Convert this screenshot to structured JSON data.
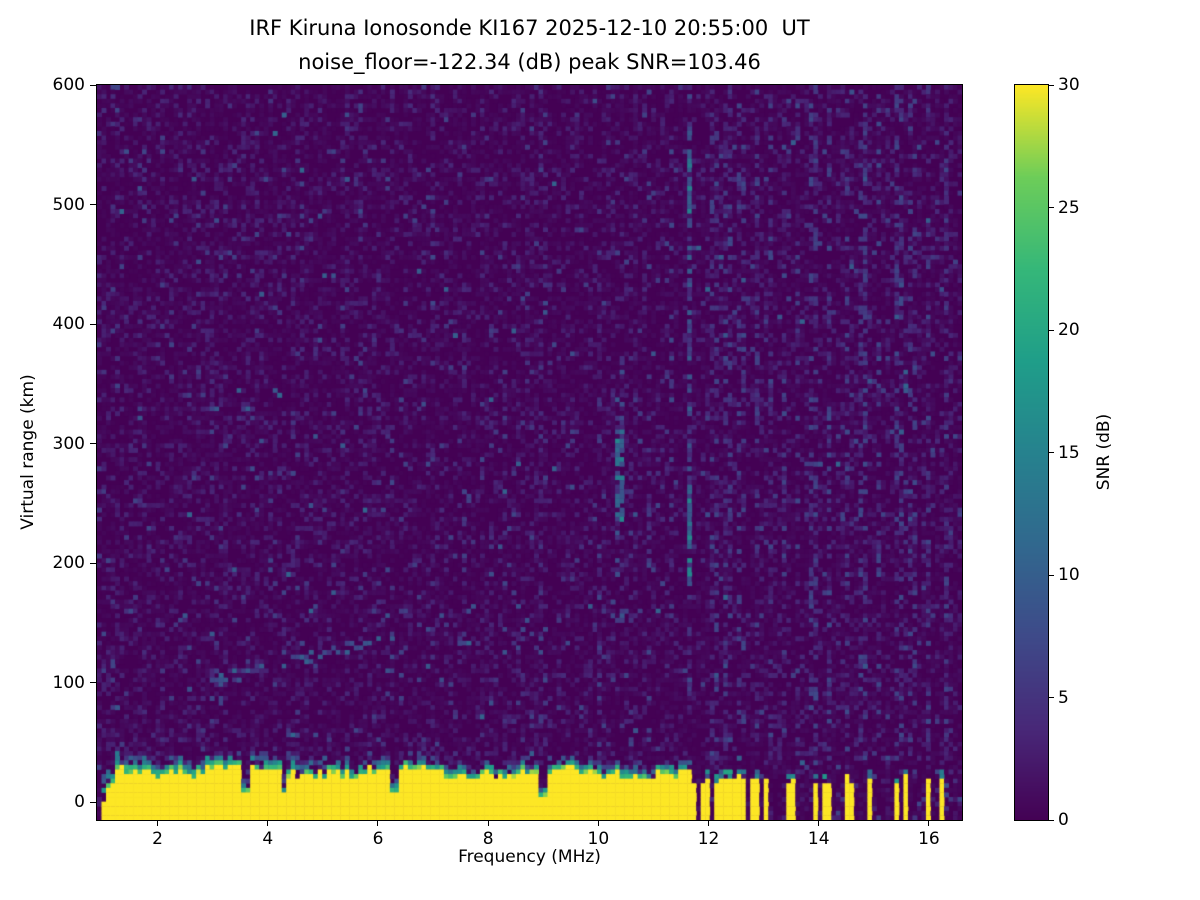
{
  "chart_data": {
    "type": "heatmap",
    "title": "IRF Kiruna Ionosonde KI167 2025-12-10 20:55:00  UT",
    "subtitle": "noise_floor=-122.34 (dB) peak SNR=103.46",
    "xlabel": "Frequency (MHz)",
    "ylabel": "Virtual range (km)",
    "colorbar_label": "SNR (dB)",
    "station": "IRF Kiruna Ionosonde KI167",
    "timestamp_ut": "2025-12-10 20:55:00 UT",
    "noise_floor_db": -122.34,
    "peak_snr_db": 103.46,
    "xlim": [
      0.9,
      16.6
    ],
    "ylim": [
      -15,
      600
    ],
    "clim": [
      0,
      30
    ],
    "xticks": [
      2,
      4,
      6,
      8,
      10,
      12,
      14,
      16
    ],
    "yticks": [
      0,
      100,
      200,
      300,
      400,
      500,
      600
    ],
    "cticks": [
      0,
      5,
      10,
      15,
      20,
      25,
      30
    ],
    "colormap": "viridis",
    "colormap_stops": [
      [
        0.0,
        [
          68,
          1,
          84
        ]
      ],
      [
        0.125,
        [
          72,
          40,
          120
        ]
      ],
      [
        0.25,
        [
          62,
          74,
          137
        ]
      ],
      [
        0.375,
        [
          49,
          104,
          142
        ]
      ],
      [
        0.5,
        [
          38,
          130,
          142
        ]
      ],
      [
        0.625,
        [
          31,
          158,
          137
        ]
      ],
      [
        0.75,
        [
          53,
          183,
          121
        ]
      ],
      [
        0.875,
        [
          109,
          205,
          89
        ]
      ],
      [
        1.0,
        [
          253,
          231,
          37
        ]
      ]
    ],
    "grid": {
      "nx": 192,
      "ny": 160,
      "seed": 1234567
    },
    "features": {
      "ground_band": {
        "f_start": 1.0,
        "f_end": 11.66,
        "yellow_top_km_mean": 24,
        "fuzz_km": 14,
        "notches": [
          {
            "f": 3.6,
            "top_km": 6
          },
          {
            "f": 4.3,
            "top_km": 5
          },
          {
            "f": 6.3,
            "top_km": 8
          },
          {
            "f": 9.0,
            "top_km": 3
          }
        ]
      },
      "ground_bars": [
        {
          "f": 11.74
        },
        {
          "f": 11.87
        },
        {
          "f": 12.0
        },
        {
          "f": 12.13
        },
        {
          "f": 12.26
        },
        {
          "f": 12.39
        },
        {
          "f": 12.52
        },
        {
          "f": 12.65
        },
        {
          "f": 12.78
        },
        {
          "f": 12.91
        },
        {
          "f": 13.04
        },
        {
          "f": 13.5
        },
        {
          "f": 13.95
        },
        {
          "f": 14.15
        },
        {
          "f": 14.55
        },
        {
          "f": 14.95
        },
        {
          "f": 15.4
        },
        {
          "f": 15.55
        },
        {
          "f": 16.0
        },
        {
          "f": 16.25
        }
      ],
      "echo_traces": [
        {
          "f0": 3.05,
          "f1": 3.95,
          "km0": 101,
          "km1": 112
        },
        {
          "f0": 4.1,
          "f1": 5.3,
          "km0": 113,
          "km1": 128
        },
        {
          "f0": 5.35,
          "f1": 6.3,
          "km0": 128,
          "km1": 139
        }
      ],
      "strong_lines": [
        {
          "f": 11.65,
          "w": 0.06,
          "km0": 90,
          "km1": 600,
          "density": 0.45,
          "core_km0": 180,
          "core_km1": 265,
          "core_density": 0.85,
          "core2_km0": 490,
          "core2_km1": 545,
          "core2_density": 0.7
        },
        {
          "f": 10.42,
          "w": 0.08,
          "km0": 150,
          "km1": 380,
          "density": 0.28,
          "core_km0": 235,
          "core_km1": 315,
          "core_density": 0.55,
          "core2_km0": 0,
          "core2_km1": 0,
          "core2_density": 0
        }
      ],
      "noise_columns": [
        {
          "f": 6.45,
          "density": 0.1
        },
        {
          "f": 7.0,
          "density": 0.08
        },
        {
          "f": 9.0,
          "density": 0.1
        },
        {
          "f": 10.0,
          "density": 0.08
        },
        {
          "f": 10.9,
          "density": 0.12
        },
        {
          "f": 11.3,
          "density": 0.12
        },
        {
          "f": 12.1,
          "density": 0.22
        },
        {
          "f": 12.35,
          "density": 0.26
        },
        {
          "f": 12.6,
          "density": 0.22
        },
        {
          "f": 12.85,
          "density": 0.26
        },
        {
          "f": 13.1,
          "density": 0.2
        },
        {
          "f": 13.35,
          "density": 0.18
        },
        {
          "f": 13.6,
          "density": 0.22
        },
        {
          "f": 13.9,
          "density": 0.26
        },
        {
          "f": 14.2,
          "density": 0.3
        },
        {
          "f": 14.5,
          "density": 0.22
        },
        {
          "f": 14.8,
          "density": 0.26
        },
        {
          "f": 15.1,
          "density": 0.22
        },
        {
          "f": 15.45,
          "density": 0.3
        },
        {
          "f": 15.7,
          "density": 0.22
        },
        {
          "f": 16.0,
          "density": 0.26
        },
        {
          "f": 16.3,
          "density": 0.22
        }
      ]
    }
  }
}
